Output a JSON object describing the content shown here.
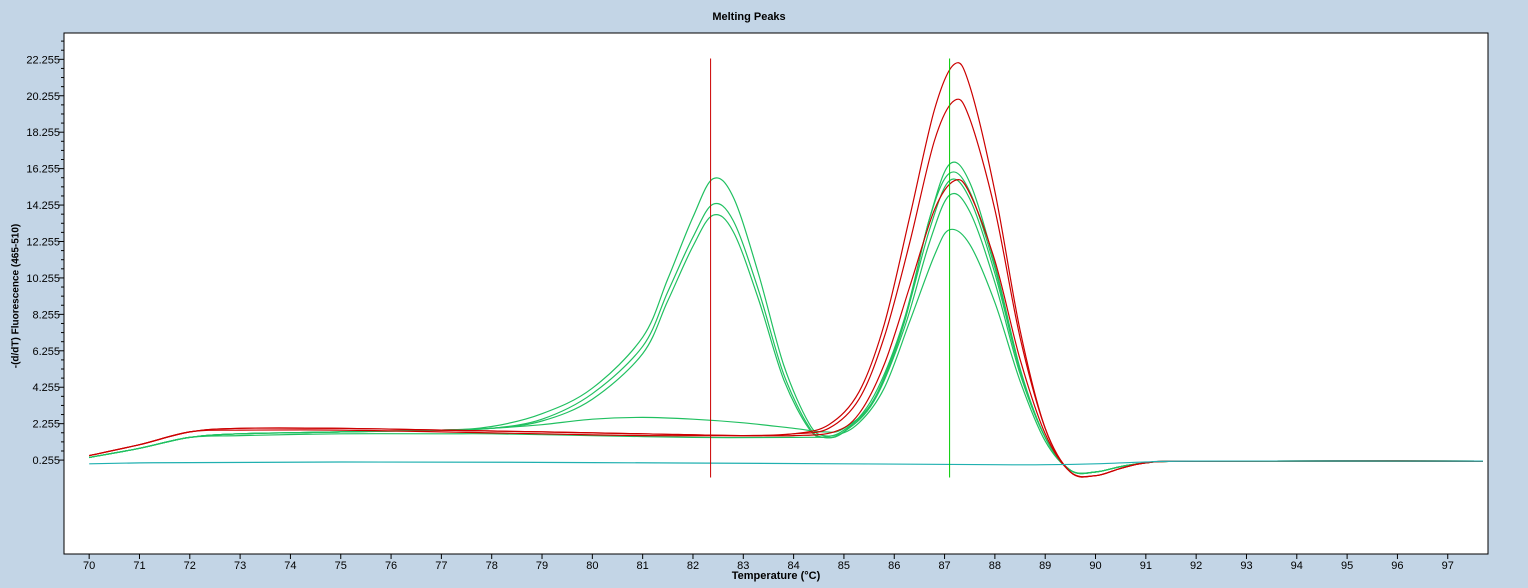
{
  "chart_data": {
    "type": "line",
    "title": "Melting Peaks",
    "xlabel": "Temperature (°C)",
    "ylabel": "-(d/dT) Fluorescence (465-510)",
    "xlim": [
      69.5,
      97.8
    ],
    "ylim": [
      -4.9,
      23.7
    ],
    "x_ticks": [
      70,
      71,
      72,
      73,
      74,
      75,
      76,
      77,
      78,
      79,
      80,
      81,
      82,
      83,
      84,
      85,
      86,
      87,
      88,
      89,
      90,
      91,
      92,
      93,
      94,
      95,
      96,
      97
    ],
    "y_ticks": [
      "0.255",
      "2.255",
      "4.255",
      "6.255",
      "8.255",
      "10.255",
      "12.255",
      "14.255",
      "16.255",
      "18.255",
      "20.255",
      "22.255"
    ],
    "markers": [
      {
        "x": 82.35,
        "color": "#cc0000",
        "y_range": [
          -0.7,
          22.3
        ]
      },
      {
        "x": 87.1,
        "color": "#00cc00",
        "y_range": [
          -0.7,
          22.3
        ]
      }
    ],
    "series": [
      {
        "color": "#20c060",
        "points": [
          [
            70,
            0.4
          ],
          [
            71,
            0.9
          ],
          [
            72,
            1.5
          ],
          [
            73,
            1.7
          ],
          [
            75,
            1.8
          ],
          [
            77,
            1.9
          ],
          [
            78,
            2.1
          ],
          [
            79,
            2.8
          ],
          [
            80,
            4.2
          ],
          [
            81,
            7.0
          ],
          [
            81.5,
            10.2
          ],
          [
            82,
            13.6
          ],
          [
            82.4,
            15.7
          ],
          [
            82.8,
            14.7
          ],
          [
            83.3,
            10.5
          ],
          [
            83.8,
            5.5
          ],
          [
            84.3,
            2.3
          ],
          [
            84.6,
            1.6
          ],
          [
            85,
            1.9
          ],
          [
            85.6,
            3.6
          ],
          [
            86.2,
            7.9
          ],
          [
            86.7,
            12.9
          ],
          [
            87.1,
            15.6
          ],
          [
            87.5,
            14.6
          ],
          [
            88,
            10.5
          ],
          [
            88.5,
            5.2
          ],
          [
            89,
            1.5
          ],
          [
            89.5,
            -0.3
          ],
          [
            90,
            -0.4
          ],
          [
            90.5,
            -0.1
          ],
          [
            91,
            0.1
          ],
          [
            92,
            0.2
          ],
          [
            97.7,
            0.2
          ]
        ]
      },
      {
        "color": "#20c060",
        "points": [
          [
            70,
            0.4
          ],
          [
            71,
            0.9
          ],
          [
            72,
            1.5
          ],
          [
            73,
            1.7
          ],
          [
            75,
            1.8
          ],
          [
            77,
            1.9
          ],
          [
            78,
            2.0
          ],
          [
            79,
            2.5
          ],
          [
            80,
            3.9
          ],
          [
            81,
            6.5
          ],
          [
            81.5,
            9.5
          ],
          [
            82,
            12.5
          ],
          [
            82.4,
            14.3
          ],
          [
            82.8,
            13.4
          ],
          [
            83.3,
            9.6
          ],
          [
            83.8,
            5.0
          ],
          [
            84.3,
            2.1
          ],
          [
            84.6,
            1.5
          ],
          [
            85,
            1.8
          ],
          [
            85.6,
            3.5
          ],
          [
            86.2,
            7.5
          ],
          [
            86.7,
            12.2
          ],
          [
            87.1,
            14.8
          ],
          [
            87.5,
            13.9
          ],
          [
            88,
            10.0
          ],
          [
            88.5,
            5.0
          ],
          [
            89,
            1.5
          ],
          [
            89.5,
            -0.3
          ],
          [
            90,
            -0.4
          ],
          [
            90.5,
            -0.1
          ],
          [
            91,
            0.1
          ],
          [
            92,
            0.2
          ],
          [
            97.7,
            0.2
          ]
        ]
      },
      {
        "color": "#20c060",
        "points": [
          [
            70,
            0.4
          ],
          [
            71,
            0.9
          ],
          [
            72,
            1.5
          ],
          [
            73,
            1.7
          ],
          [
            75,
            1.8
          ],
          [
            77,
            1.9
          ],
          [
            78,
            2.0
          ],
          [
            79,
            2.4
          ],
          [
            80,
            3.6
          ],
          [
            81,
            6.1
          ],
          [
            81.5,
            9.0
          ],
          [
            82,
            12.0
          ],
          [
            82.4,
            13.7
          ],
          [
            82.8,
            12.8
          ],
          [
            83.3,
            9.1
          ],
          [
            83.8,
            4.7
          ],
          [
            84.3,
            2.0
          ],
          [
            84.6,
            1.5
          ],
          [
            85,
            1.8
          ],
          [
            85.6,
            3.8
          ],
          [
            86.2,
            8.0
          ],
          [
            86.7,
            13.5
          ],
          [
            87.1,
            16.5
          ],
          [
            87.5,
            15.5
          ],
          [
            88,
            11.0
          ],
          [
            88.5,
            5.3
          ],
          [
            89,
            1.5
          ],
          [
            89.5,
            -0.3
          ],
          [
            90,
            -0.4
          ],
          [
            90.5,
            -0.1
          ],
          [
            91,
            0.1
          ],
          [
            92,
            0.2
          ],
          [
            97.7,
            0.2
          ]
        ]
      },
      {
        "color": "#20c060",
        "points": [
          [
            70,
            0.4
          ],
          [
            71,
            0.9
          ],
          [
            72,
            1.5
          ],
          [
            73,
            1.7
          ],
          [
            75,
            1.8
          ],
          [
            77,
            1.9
          ],
          [
            78,
            2.0
          ],
          [
            79,
            2.2
          ],
          [
            80,
            2.5
          ],
          [
            81,
            2.6
          ],
          [
            82,
            2.5
          ],
          [
            83,
            2.3
          ],
          [
            84,
            2.0
          ],
          [
            84.6,
            1.8
          ],
          [
            85,
            2.0
          ],
          [
            85.6,
            3.6
          ],
          [
            86.2,
            7.8
          ],
          [
            86.7,
            13.5
          ],
          [
            87.1,
            16.0
          ],
          [
            87.5,
            15.0
          ],
          [
            88,
            10.8
          ],
          [
            88.5,
            5.2
          ],
          [
            89,
            1.5
          ],
          [
            89.5,
            -0.3
          ],
          [
            90,
            -0.4
          ],
          [
            90.5,
            -0.1
          ],
          [
            91,
            0.1
          ],
          [
            92,
            0.2
          ],
          [
            97.7,
            0.2
          ]
        ]
      },
      {
        "color": "#20c060",
        "points": [
          [
            70,
            0.4
          ],
          [
            71,
            0.9
          ],
          [
            72,
            1.5
          ],
          [
            73,
            1.6
          ],
          [
            75,
            1.7
          ],
          [
            77,
            1.7
          ],
          [
            78,
            1.7
          ],
          [
            80,
            1.6
          ],
          [
            82,
            1.5
          ],
          [
            84,
            1.5
          ],
          [
            84.8,
            1.6
          ],
          [
            85.3,
            2.3
          ],
          [
            85.8,
            4.2
          ],
          [
            86.3,
            7.8
          ],
          [
            86.8,
            11.5
          ],
          [
            87.1,
            12.9
          ],
          [
            87.5,
            12.1
          ],
          [
            88,
            8.9
          ],
          [
            88.5,
            4.6
          ],
          [
            89,
            1.3
          ],
          [
            89.5,
            -0.3
          ],
          [
            90,
            -0.4
          ],
          [
            90.5,
            -0.1
          ],
          [
            91,
            0.1
          ],
          [
            92,
            0.2
          ],
          [
            97.7,
            0.2
          ]
        ]
      },
      {
        "color": "#cc0000",
        "points": [
          [
            70,
            0.5
          ],
          [
            71,
            1.1
          ],
          [
            72,
            1.8
          ],
          [
            73,
            2.0
          ],
          [
            75,
            2.0
          ],
          [
            77,
            1.9
          ],
          [
            79,
            1.8
          ],
          [
            81,
            1.7
          ],
          [
            83,
            1.6
          ],
          [
            84,
            1.7
          ],
          [
            84.7,
            2.2
          ],
          [
            85.3,
            4.0
          ],
          [
            85.8,
            7.7
          ],
          [
            86.3,
            13.5
          ],
          [
            86.8,
            19.5
          ],
          [
            87.2,
            22.0
          ],
          [
            87.5,
            20.8
          ],
          [
            88,
            15.0
          ],
          [
            88.5,
            7.4
          ],
          [
            89,
            2.0
          ],
          [
            89.5,
            -0.4
          ],
          [
            90,
            -0.6
          ],
          [
            90.5,
            -0.2
          ],
          [
            91,
            0.1
          ],
          [
            92,
            0.2
          ],
          [
            97.7,
            0.2
          ]
        ]
      },
      {
        "color": "#cc0000",
        "points": [
          [
            70,
            0.5
          ],
          [
            71,
            1.1
          ],
          [
            72,
            1.8
          ],
          [
            73,
            2.0
          ],
          [
            75,
            2.0
          ],
          [
            77,
            1.9
          ],
          [
            79,
            1.8
          ],
          [
            81,
            1.7
          ],
          [
            83,
            1.6
          ],
          [
            84,
            1.7
          ],
          [
            84.7,
            2.0
          ],
          [
            85.3,
            3.6
          ],
          [
            85.8,
            7.0
          ],
          [
            86.3,
            12.1
          ],
          [
            86.8,
            17.8
          ],
          [
            87.2,
            20.0
          ],
          [
            87.5,
            19.0
          ],
          [
            88,
            14.0
          ],
          [
            88.5,
            7.0
          ],
          [
            89,
            2.0
          ],
          [
            89.5,
            -0.4
          ],
          [
            90,
            -0.6
          ],
          [
            90.5,
            -0.2
          ],
          [
            91,
            0.1
          ],
          [
            92,
            0.2
          ],
          [
            97.7,
            0.2
          ]
        ]
      },
      {
        "color": "#cc0000",
        "points": [
          [
            70,
            0.5
          ],
          [
            71,
            1.1
          ],
          [
            72,
            1.8
          ],
          [
            73,
            1.9
          ],
          [
            75,
            1.9
          ],
          [
            77,
            1.8
          ],
          [
            79,
            1.7
          ],
          [
            81,
            1.6
          ],
          [
            83,
            1.6
          ],
          [
            84,
            1.6
          ],
          [
            84.8,
            1.8
          ],
          [
            85.3,
            2.8
          ],
          [
            85.8,
            5.5
          ],
          [
            86.3,
            9.7
          ],
          [
            86.8,
            14.0
          ],
          [
            87.2,
            15.6
          ],
          [
            87.5,
            14.9
          ],
          [
            88,
            11.2
          ],
          [
            88.5,
            5.8
          ],
          [
            89,
            1.7
          ],
          [
            89.5,
            -0.4
          ],
          [
            90,
            -0.6
          ],
          [
            90.5,
            -0.2
          ],
          [
            91,
            0.1
          ],
          [
            92,
            0.2
          ],
          [
            97.7,
            0.2
          ]
        ]
      },
      {
        "color": "#20b0b0",
        "points": [
          [
            70,
            0.05
          ],
          [
            71,
            0.1
          ],
          [
            72,
            0.12
          ],
          [
            75,
            0.15
          ],
          [
            80,
            0.12
          ],
          [
            85,
            0.05
          ],
          [
            88,
            0.0
          ],
          [
            89,
            0.0
          ],
          [
            90,
            0.05
          ],
          [
            91,
            0.15
          ],
          [
            92,
            0.2
          ],
          [
            97.7,
            0.2
          ]
        ]
      }
    ]
  }
}
